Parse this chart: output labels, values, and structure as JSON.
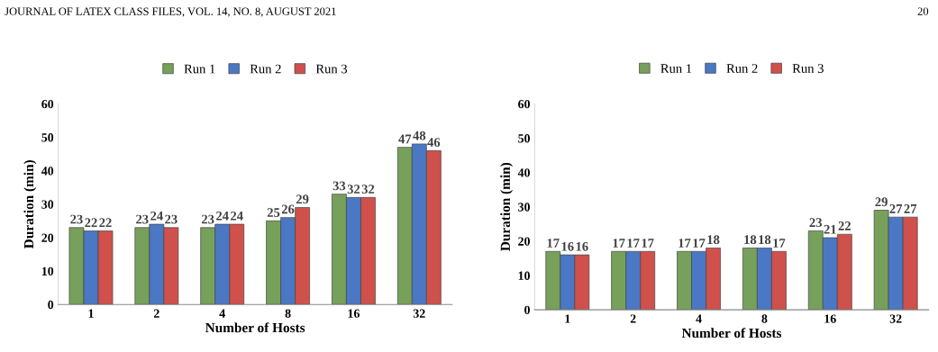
{
  "chart_data": [
    {
      "type": "bar",
      "annotations": [
        "JOURNAL OF LATEX CLASS FILES, VOL. 14, NO. 8, AUGUST 2021"
      ],
      "xlabel": "Number of Hosts",
      "ylabel": "Duration (min)",
      "categories": [
        "1",
        "2",
        "4",
        "8",
        "16",
        "32"
      ],
      "series": [
        {
          "name": "Run 1",
          "color": "#77a05a",
          "values": [
            23,
            23,
            23,
            25,
            33,
            47
          ]
        },
        {
          "name": "Run 2",
          "color": "#4a78c4",
          "values": [
            22,
            24,
            24,
            26,
            32,
            48
          ]
        },
        {
          "name": "Run 3",
          "color": "#d0504c",
          "values": [
            22,
            23,
            24,
            29,
            32,
            46
          ]
        }
      ],
      "ylim": [
        0,
        60
      ],
      "yticks": [
        0,
        10,
        20,
        30,
        40,
        50,
        60
      ],
      "data_labels": true,
      "legend": "top",
      "grid": false
    },
    {
      "type": "bar",
      "annotations": [
        "20"
      ],
      "xlabel": "Number of Hosts",
      "ylabel": "Duration (min)",
      "categories": [
        "1",
        "2",
        "4",
        "8",
        "16",
        "32"
      ],
      "series": [
        {
          "name": "Run 1",
          "color": "#77a05a",
          "values": [
            17,
            17,
            17,
            18,
            23,
            29
          ]
        },
        {
          "name": "Run 2",
          "color": "#4a78c4",
          "values": [
            16,
            17,
            17,
            18,
            21,
            27
          ]
        },
        {
          "name": "Run 3",
          "color": "#d0504c",
          "values": [
            16,
            17,
            18,
            17,
            22,
            27
          ]
        }
      ],
      "ylim": [
        0,
        60
      ],
      "yticks": [
        0,
        10,
        20,
        30,
        40,
        50,
        60
      ],
      "data_labels": true,
      "legend": "top",
      "grid": false
    }
  ]
}
